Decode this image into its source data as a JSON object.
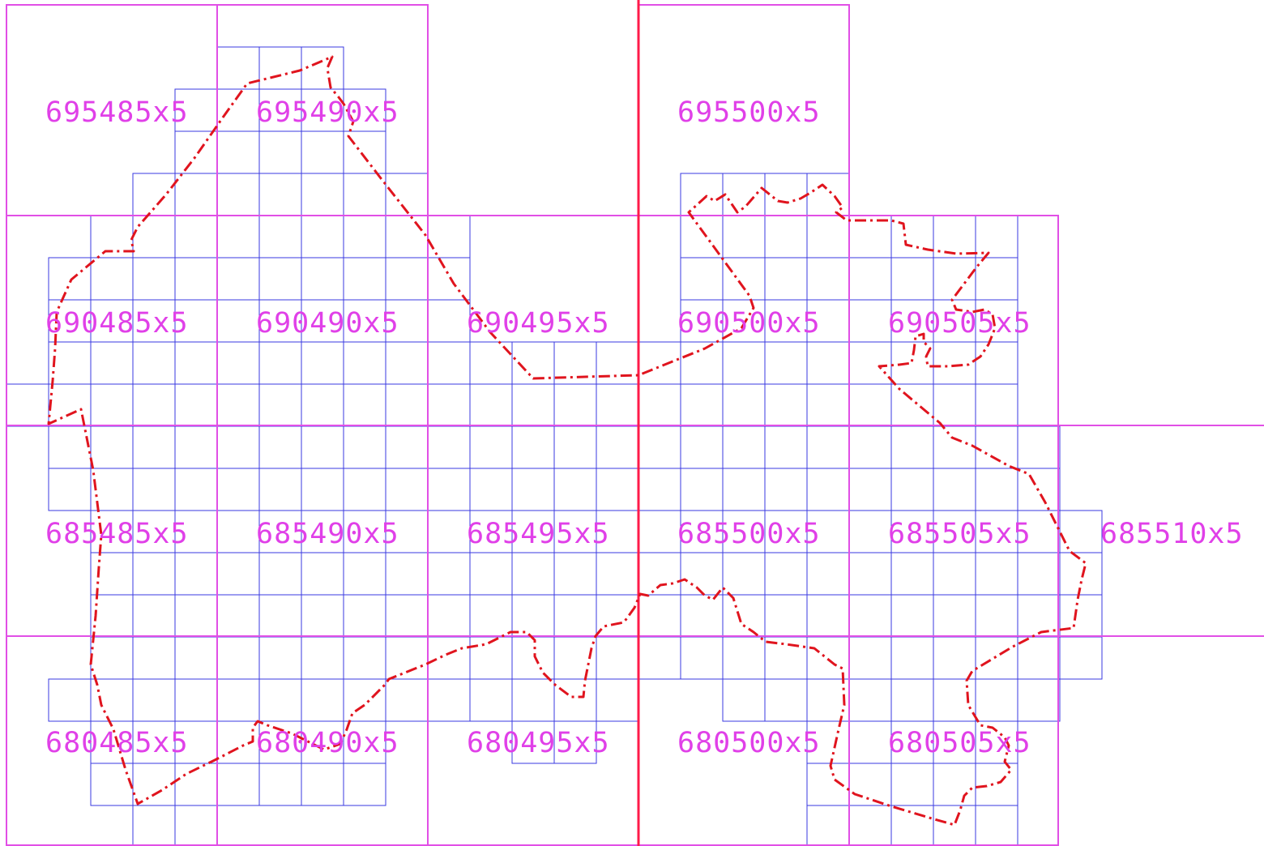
{
  "map": {
    "colors": {
      "large_sheet_grid": "#e14fe6",
      "small_sheet_grid": "#3a3ae0",
      "central_meridian": "#ff1a4a",
      "boundary": "#e0141e",
      "label": "#e040e8"
    },
    "sheet_labels": {
      "r695": {
        "c485": "695485x5",
        "c490": "695490x5",
        "c500": "695500x5"
      },
      "r690": {
        "c485": "690485x5",
        "c490": "690490x5",
        "c495": "690495x5",
        "c500": "690500x5",
        "c505": "690505x5"
      },
      "r685": {
        "c485": "685485x5",
        "c490": "685490x5",
        "c495": "685495x5",
        "c500": "685500x5",
        "c505": "685505x5",
        "c510": "685510x5"
      },
      "r680": {
        "c485": "680485x5",
        "c490": "680490x5",
        "c495": "680495x5",
        "c500": "680500x5",
        "c505": "680505x5"
      }
    },
    "boundary_line_style": "dash-dot",
    "grid_line_style": "solid"
  }
}
